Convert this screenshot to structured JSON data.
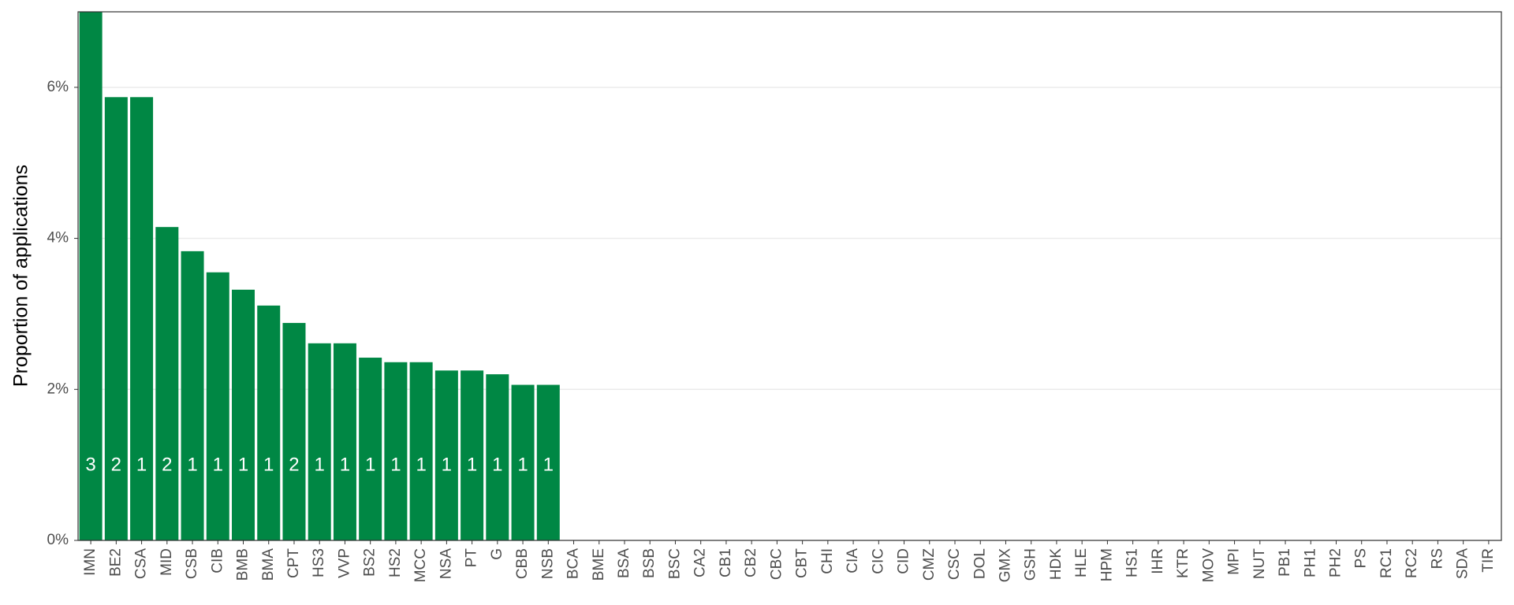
{
  "chart_data": {
    "type": "bar",
    "y_label": "Proportion of applications",
    "categories": [
      "IMN",
      "BE2",
      "CSA",
      "MID",
      "CSB",
      "CIB",
      "BMB",
      "BMA",
      "CPT",
      "HS3",
      "VVP",
      "BS2",
      "HS2",
      "MCC",
      "NSA",
      "PT",
      "G",
      "CBB",
      "NSB",
      "BCA",
      "BME",
      "BSA",
      "BSB",
      "BSC",
      "CA2",
      "CB1",
      "CB2",
      "CBC",
      "CBT",
      "CHI",
      "CIA",
      "CIC",
      "CID",
      "CMZ",
      "CSC",
      "DOL",
      "GMX",
      "GSH",
      "HDK",
      "HLE",
      "HPM",
      "HS1",
      "IHR",
      "KTR",
      "MOV",
      "MPI",
      "NUT",
      "PB1",
      "PH1",
      "PH2",
      "PS",
      "RC1",
      "RC2",
      "RS",
      "SDA",
      "TIR"
    ],
    "values": [
      7.0,
      5.87,
      5.87,
      4.15,
      3.83,
      3.55,
      3.32,
      3.11,
      2.88,
      2.61,
      2.61,
      2.42,
      2.36,
      2.36,
      2.25,
      2.25,
      2.2,
      2.06,
      2.06,
      0,
      0,
      0,
      0,
      0,
      0,
      0,
      0,
      0,
      0,
      0,
      0,
      0,
      0,
      0,
      0,
      0,
      0,
      0,
      0,
      0,
      0,
      0,
      0,
      0,
      0,
      0,
      0,
      0,
      0,
      0,
      0,
      0,
      0,
      0,
      0,
      0
    ],
    "bar_labels": [
      "3",
      "2",
      "1",
      "2",
      "1",
      "1",
      "1",
      "1",
      "2",
      "1",
      "1",
      "1",
      "1",
      "1",
      "1",
      "1",
      "1",
      "1",
      "1",
      null,
      null,
      null,
      null,
      null,
      null,
      null,
      null,
      null,
      null,
      null,
      null,
      null,
      null,
      null,
      null,
      null,
      null,
      null,
      null,
      null,
      null,
      null,
      null,
      null,
      null,
      null,
      null,
      null,
      null,
      null,
      null,
      null,
      null,
      null,
      null,
      null
    ],
    "color": "#008744",
    "ylim": [
      0,
      7.0
    ],
    "yticks": [
      {
        "value": 0,
        "label": "0%"
      },
      {
        "value": 2,
        "label": "2%"
      },
      {
        "value": 4,
        "label": "4%"
      },
      {
        "value": 6,
        "label": "6%"
      }
    ],
    "grid": true
  }
}
